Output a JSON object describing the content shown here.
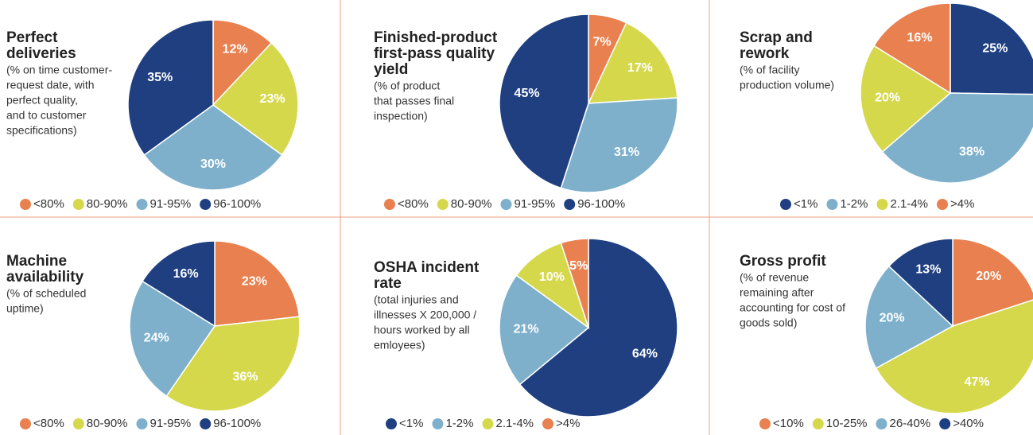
{
  "chart_data": [
    {
      "type": "pie",
      "title": [
        "Perfect",
        "deliveries"
      ],
      "subtitle": [
        "(% on time customer-",
        "request date, with",
        "perfect quality,",
        "and to customer",
        "specifications)"
      ],
      "categories": [
        "<80%",
        "80-90%",
        "91-95%",
        "96-100%"
      ],
      "values": [
        12,
        23,
        30,
        35
      ],
      "value_labels": [
        "12%",
        "23%",
        "30%",
        "35%"
      ],
      "colors": [
        "#e8804f",
        "#d6d84c",
        "#7eb0cc",
        "#1f3f80"
      ]
    },
    {
      "type": "pie",
      "title": [
        "Finished-product",
        "first-pass quality",
        "yield"
      ],
      "subtitle": [
        "(% of product",
        "that passes final",
        "inspection)"
      ],
      "categories": [
        "<80%",
        "80-90%",
        "91-95%",
        "96-100%"
      ],
      "values": [
        7,
        17,
        31,
        45
      ],
      "value_labels": [
        "7%",
        "17%",
        "31%",
        "45%"
      ],
      "colors": [
        "#e8804f",
        "#d6d84c",
        "#7eb0cc",
        "#1f3f80"
      ]
    },
    {
      "type": "pie",
      "title": [
        "Scrap and",
        "rework"
      ],
      "subtitle": [
        "(% of facility",
        "production volume)"
      ],
      "categories": [
        "<1%",
        "1-2%",
        "2.1-4%",
        ">4%"
      ],
      "values": [
        25,
        38,
        20,
        16
      ],
      "value_labels": [
        "25%",
        "38%",
        "20%",
        "16%"
      ],
      "colors": [
        "#1f3f80",
        "#7eb0cc",
        "#d6d84c",
        "#e8804f"
      ]
    },
    {
      "type": "pie",
      "title": [
        "Machine",
        "availability"
      ],
      "subtitle": [
        "(% of scheduled",
        "uptime)"
      ],
      "categories": [
        "<80%",
        "80-90%",
        "91-95%",
        "96-100%"
      ],
      "values": [
        23,
        36,
        24,
        16
      ],
      "value_labels": [
        "23%",
        "36%",
        "24%",
        "16%"
      ],
      "colors": [
        "#e8804f",
        "#d6d84c",
        "#7eb0cc",
        "#1f3f80"
      ]
    },
    {
      "type": "pie",
      "title": [
        "OSHA incident",
        "rate"
      ],
      "subtitle": [
        "(total injuries and",
        "illnesses X 200,000 /",
        "hours worked by all",
        "emloyees)"
      ],
      "categories": [
        "<1%",
        "1-2%",
        "2.1-4%",
        ">4%"
      ],
      "values": [
        64,
        21,
        10,
        5
      ],
      "value_labels": [
        "64%",
        "21%",
        "10%",
        "5%"
      ],
      "colors": [
        "#1f3f80",
        "#7eb0cc",
        "#d6d84c",
        "#e8804f"
      ]
    },
    {
      "type": "pie",
      "title": [
        "Gross profit"
      ],
      "subtitle": [
        "(% of revenue",
        "remaining after",
        "accounting for cost of",
        "goods sold)"
      ],
      "categories": [
        "<10%",
        "10-25%",
        "26-40%",
        ">40%"
      ],
      "values": [
        20,
        47,
        20,
        13
      ],
      "value_labels": [
        "20%",
        "47%",
        "20%",
        "13%"
      ],
      "colors": [
        "#e8804f",
        "#d6d84c",
        "#7eb0cc",
        "#1f3f80"
      ]
    }
  ]
}
